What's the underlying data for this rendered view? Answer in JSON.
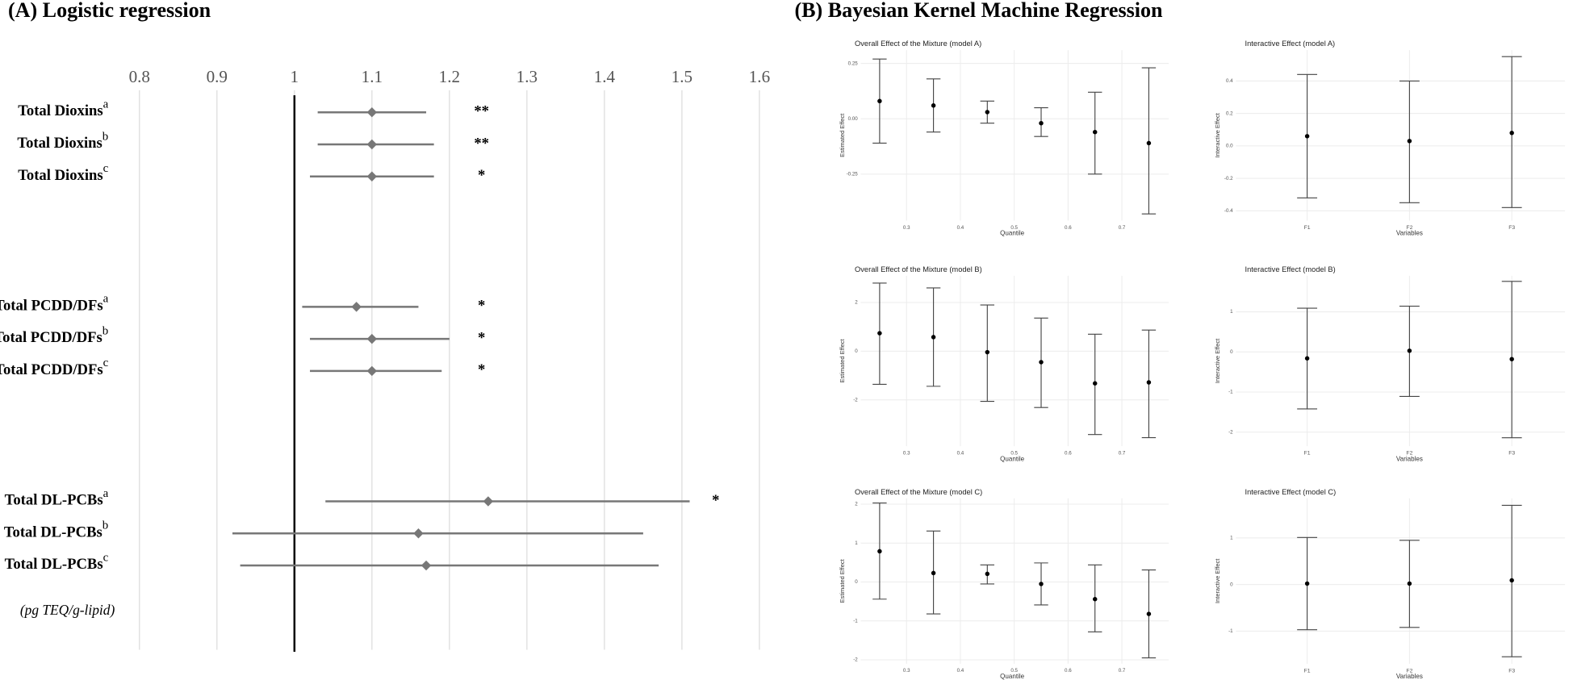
{
  "panel_b_title": "(B) Bayesian Kernel Machine Regression",
  "chart_data": [
    {
      "type": "forest",
      "title": "(A) Logistic regression",
      "note": "(pg TEQ/g-lipid)",
      "categories": [
        "Total Dioxins",
        "Total Dioxins",
        "Total Dioxins",
        "Total PCDD/DFs",
        "Total PCDD/DFs",
        "Total PCDD/DFs",
        "Total DL-PCBs",
        "Total DL-PCBs",
        "Total DL-PCBs"
      ],
      "superscripts": [
        "a",
        "b",
        "c",
        "a",
        "b",
        "c",
        "a",
        "b",
        "c"
      ],
      "values": [
        1.1,
        1.1,
        1.1,
        1.08,
        1.1,
        1.1,
        1.25,
        1.16,
        1.17
      ],
      "lower": [
        1.03,
        1.03,
        1.02,
        1.01,
        1.02,
        1.02,
        1.04,
        0.92,
        0.93
      ],
      "upper": [
        1.17,
        1.18,
        1.18,
        1.16,
        1.2,
        1.19,
        1.51,
        1.45,
        1.47
      ],
      "significance": [
        "**",
        "**",
        "*",
        "*",
        "*",
        "*",
        "*",
        null,
        null
      ],
      "xlim": [
        0.8,
        1.6
      ],
      "xticks": [
        0.8,
        0.9,
        1,
        1.1,
        1.2,
        1.3,
        1.4,
        1.5,
        1.6
      ],
      "reference": 1,
      "grid": true,
      "color": "#777777"
    },
    {
      "type": "errorbar",
      "title": "Overall Effect of the Mixture (model A)",
      "xlabel": "Quantile",
      "ylabel": "Estimated Effect",
      "x": [
        0.25,
        0.35,
        0.45,
        0.55,
        0.65,
        0.75
      ],
      "values": [
        0.08,
        0.06,
        0.03,
        -0.02,
        -0.06,
        -0.11
      ],
      "lower": [
        -0.11,
        -0.06,
        -0.02,
        -0.08,
        -0.25,
        -0.43
      ],
      "upper": [
        0.27,
        0.18,
        0.08,
        0.05,
        0.12,
        0.23
      ],
      "xlim": [
        0.2,
        0.8
      ],
      "xticks": [
        0.3,
        0.4,
        0.5,
        0.6,
        0.7
      ],
      "ylim": [
        -0.46,
        0.31
      ],
      "yticks": [
        -0.25,
        {
          "value": 0,
          "label": "0.00"
        },
        0.25
      ]
    },
    {
      "type": "errorbar",
      "title": "Interactive Effect (model A)",
      "xlabel": "Variables",
      "ylabel": "Interactive Effect",
      "categories": [
        "F1",
        "F2",
        "F3"
      ],
      "values": [
        0.06,
        0.03,
        0.08
      ],
      "lower": [
        -0.32,
        -0.35,
        -0.38
      ],
      "upper": [
        0.44,
        0.4,
        0.55
      ],
      "ylim": [
        -0.46,
        0.59
      ],
      "yticks": [
        -0.4,
        -0.2,
        {
          "value": 0,
          "label": "0.0"
        },
        0.2,
        0.4
      ]
    },
    {
      "type": "errorbar",
      "title": "Overall Effect of the Mixture (model B)",
      "xlabel": "Quantile",
      "ylabel": "Estimated Effect",
      "x": [
        0.25,
        0.35,
        0.45,
        0.55,
        0.65,
        0.75
      ],
      "values": [
        0.74,
        0.58,
        -0.04,
        -0.45,
        -1.32,
        -1.28
      ],
      "lower": [
        -1.36,
        -1.44,
        -2.06,
        -2.31,
        -3.42,
        -3.55
      ],
      "upper": [
        2.8,
        2.6,
        1.9,
        1.36,
        0.7,
        0.87
      ],
      "xlim": [
        0.2,
        0.8
      ],
      "xticks": [
        0.3,
        0.4,
        0.5,
        0.6,
        0.7
      ],
      "ylim": [
        -3.9,
        3.1
      ],
      "yticks": [
        -2,
        0,
        2
      ]
    },
    {
      "type": "errorbar",
      "title": "Interactive Effect (model B)",
      "xlabel": "Variables",
      "ylabel": "Interactive Effect",
      "categories": [
        "F1",
        "F2",
        "F3"
      ],
      "values": [
        -0.16,
        0.03,
        -0.18
      ],
      "lower": [
        -1.42,
        -1.11,
        -2.14
      ],
      "upper": [
        1.09,
        1.14,
        1.76
      ],
      "ylim": [
        -2.35,
        1.9
      ],
      "yticks": [
        -2,
        -1,
        0,
        1
      ]
    },
    {
      "type": "errorbar",
      "title": "Overall Effect of the Mixture (model C)",
      "xlabel": "Quantile",
      "ylabel": "Estimated Effect",
      "x": [
        0.25,
        0.35,
        0.45,
        0.55,
        0.65,
        0.75
      ],
      "values": [
        0.79,
        0.23,
        0.21,
        -0.05,
        -0.44,
        -0.82
      ],
      "lower": [
        -0.44,
        -0.82,
        -0.05,
        -0.59,
        -1.28,
        -1.95
      ],
      "upper": [
        2.03,
        1.31,
        0.44,
        0.49,
        0.44,
        0.31
      ],
      "xlim": [
        0.2,
        0.8
      ],
      "xticks": [
        0.3,
        0.4,
        0.5,
        0.6,
        0.7
      ],
      "ylim": [
        -2.1,
        2.15
      ],
      "yticks": [
        -2,
        -1,
        0,
        1,
        2
      ]
    },
    {
      "type": "errorbar",
      "title": "Interactive Effect (model C)",
      "xlabel": "Variables",
      "ylabel": "Interactive Effect",
      "categories": [
        "F1",
        "F2",
        "F3"
      ],
      "values": [
        0.02,
        0.02,
        0.09
      ],
      "lower": [
        -0.97,
        -0.92,
        -1.55
      ],
      "upper": [
        1.01,
        0.95,
        1.7
      ],
      "ylim": [
        -1.7,
        1.85
      ],
      "yticks": [
        -1,
        0,
        1
      ]
    }
  ]
}
